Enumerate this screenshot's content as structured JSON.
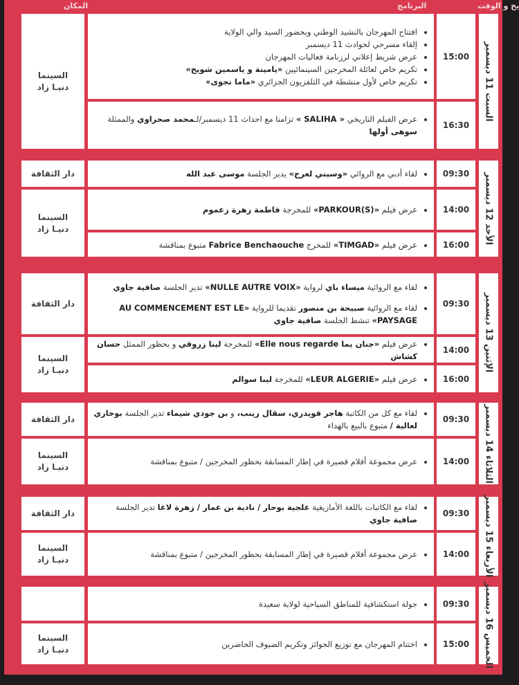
{
  "headers": {
    "date_time": "التاريخ و الوقت",
    "program": "البرنامج",
    "venue": "المكان"
  },
  "colors": {
    "background": "#d93a4f",
    "cell": "#ffffff",
    "frame": "#1c1c1e"
  },
  "days": [
    {
      "label": "السبت 11 ديسمبر",
      "venues": [
        {
          "name": "السينما\nدنيـا زاد",
          "slots": 2
        }
      ],
      "slots": [
        {
          "time": "15:00",
          "items": [
            [
              {
                "text": "افتتاح المهرجان بالنشيد الوطني وبحضور السيد والي الولاية"
              }
            ],
            [
              {
                "text": "إلقاء مسرحي لحوادث 11 ديسمبر"
              }
            ],
            [
              {
                "text": "عرض شريط إعلاني لرزنامة فعاليات المهرجان"
              }
            ],
            [
              {
                "text": "تكريم خاص لعائلة المخرجين السينمائيين "
              },
              {
                "text": "«يامينة و ياسمين شويخ»",
                "bold": true
              }
            ],
            [
              {
                "text": "تكريم خاص لأول منشطة في التلفزيون الجزائري "
              },
              {
                "text": "«ماما نجوى»",
                "bold": true
              }
            ]
          ]
        },
        {
          "time": "16:30",
          "items": [
            [
              {
                "text": "عرض الفيلم التاريخي "
              },
              {
                "text": "« SALIHA »",
                "bold": true
              },
              {
                "text": " تزامنا مع احداث 11 ديسمبر/لـ"
              },
              {
                "text": "محمد صحراوي",
                "bold": true
              },
              {
                "text": " والممثلة "
              },
              {
                "text": "سوهى أولها",
                "bold": true
              }
            ]
          ]
        }
      ]
    },
    {
      "label": "الأحد 12 ديسمبر",
      "venues": [
        {
          "name": "دار الثقافة",
          "slots": 1
        },
        {
          "name": "السينما\nدنيـا زاد",
          "slots": 2
        }
      ],
      "slots": [
        {
          "time": "09:30",
          "items": [
            [
              {
                "text": "لقاء أدبي مع الروائي "
              },
              {
                "text": "«وسيني لعرج»",
                "bold": true
              },
              {
                "text": " يدير الجلسة "
              },
              {
                "text": "موسى عبد الله",
                "bold": true
              }
            ]
          ]
        },
        {
          "time": "14:00",
          "items": [
            [
              {
                "text": "عرض فيلم "
              },
              {
                "text": "«PARKOUR(S)»",
                "bold": true
              },
              {
                "text": " للمخرجة "
              },
              {
                "text": "فاطمة زهرة زعموم",
                "bold": true
              }
            ]
          ]
        },
        {
          "time": "16:00",
          "items": [
            [
              {
                "text": "عرض فيلم "
              },
              {
                "text": "«TIMGAD»",
                "bold": true
              },
              {
                "text": " للمخرج "
              },
              {
                "text": "Fabrice Benchaouche",
                "bold": true
              },
              {
                "text": " متبوع بمناقشة"
              }
            ]
          ]
        }
      ]
    },
    {
      "label": "الإثنين 13 ديسمبر",
      "venues": [
        {
          "name": "دار الثقافة",
          "slots": 1
        },
        {
          "name": "السينما\nدنيـا زاد",
          "slots": 2
        }
      ],
      "slots": [
        {
          "time": "09:30",
          "items": [
            [
              {
                "text": "لقاء مع الروائية "
              },
              {
                "text": "ميساء باي",
                "bold": true
              },
              {
                "text": " لرواية "
              },
              {
                "text": "«NULLE AUTRE VOIX»",
                "bold": true
              },
              {
                "text": " تدير الجلسة "
              },
              {
                "text": "صافية جاوي",
                "bold": true
              }
            ],
            [
              {
                "text": "لقاء مع الروائية "
              },
              {
                "text": "صبيحة بن منصور",
                "bold": true
              },
              {
                "text": " تقديما للرواية "
              },
              {
                "text": "«AU COMMENCEMENT EST LE PAYSAGE»",
                "bold": true
              },
              {
                "text": " تنشط الجلسة "
              },
              {
                "text": "صافية جاوي",
                "bold": true
              }
            ]
          ]
        },
        {
          "time": "14:00",
          "items": [
            [
              {
                "text": "عرض فيلم "
              },
              {
                "text": "«جنان يما Elle nous regarde»",
                "bold": true
              },
              {
                "text": " للمخرجة "
              },
              {
                "text": "لينا زروقي",
                "bold": true
              },
              {
                "text": " و بحظور الممثل "
              },
              {
                "text": "حسان كشاش",
                "bold": true
              }
            ]
          ]
        },
        {
          "time": "16:00",
          "items": [
            [
              {
                "text": "عرض فيلم "
              },
              {
                "text": "«LEUR ALGERIE»",
                "bold": true
              },
              {
                "text": " للمخرجة "
              },
              {
                "text": "لينا سوالم",
                "bold": true
              }
            ]
          ]
        }
      ]
    },
    {
      "label": "الثلاثاء 14 ديسمبر",
      "venues": [
        {
          "name": "دار الثقافة",
          "slots": 1
        },
        {
          "name": "السينما\nدنيـا زاد",
          "slots": 1
        }
      ],
      "slots": [
        {
          "time": "09:30",
          "items": [
            [
              {
                "text": "لقاء مع كل من الكاتبة "
              },
              {
                "text": "هاجر قويدري، سقال زينب، ",
                "bold": true
              },
              {
                "text": "و "
              },
              {
                "text": "بن جودي شيماء",
                "bold": true
              },
              {
                "text": " تدير الجلسة "
              },
              {
                "text": "بوخاري لعالية /",
                "bold": true
              },
              {
                "text": " متبوع بالبيع بالهداء"
              }
            ]
          ]
        },
        {
          "time": "14:00",
          "items": [
            [
              {
                "text": "عرض مجموعة أفلام قصيرة في إطار المسابقة بحظور المخرجين / متبوع بمناقشة"
              }
            ]
          ]
        }
      ]
    },
    {
      "label": "الأربعاء 15 ديسمبر",
      "venues": [
        {
          "name": "دار الثقافة",
          "slots": 1
        },
        {
          "name": "السينما\nدنيـا زاد",
          "slots": 1
        }
      ],
      "slots": [
        {
          "time": "09:30",
          "items": [
            [
              {
                "text": "لقاء مع الكاتبات باللغة الأمازيغية "
              },
              {
                "text": "علجية بوحار / نادية بن عمار / زهرة لاغا",
                "bold": true
              },
              {
                "text": " تدير الجلسة "
              },
              {
                "text": "صافية جاوي",
                "bold": true
              }
            ]
          ]
        },
        {
          "time": "14:00",
          "items": [
            [
              {
                "text": "عرض مجموعة أفلام قصيرة في إطار المسابقة بحظور المخرجين / متبوع بمناقشة"
              }
            ]
          ]
        }
      ]
    },
    {
      "label": "الخميس 16 ديسمبر",
      "venues": [
        {
          "name": "",
          "slots": 1
        },
        {
          "name": "السينما\nدنيـا زاد",
          "slots": 1
        }
      ],
      "slots": [
        {
          "time": "09:30",
          "items": [
            [
              {
                "text": "جولة استكشافية للمناطق السياحية لولاية سعيدة"
              }
            ]
          ]
        },
        {
          "time": "15:00",
          "items": [
            [
              {
                "text": "اختتام المهرجان مع توزيع الجوائز وتكريم الضيوف الحاضرين"
              }
            ]
          ]
        }
      ]
    }
  ]
}
